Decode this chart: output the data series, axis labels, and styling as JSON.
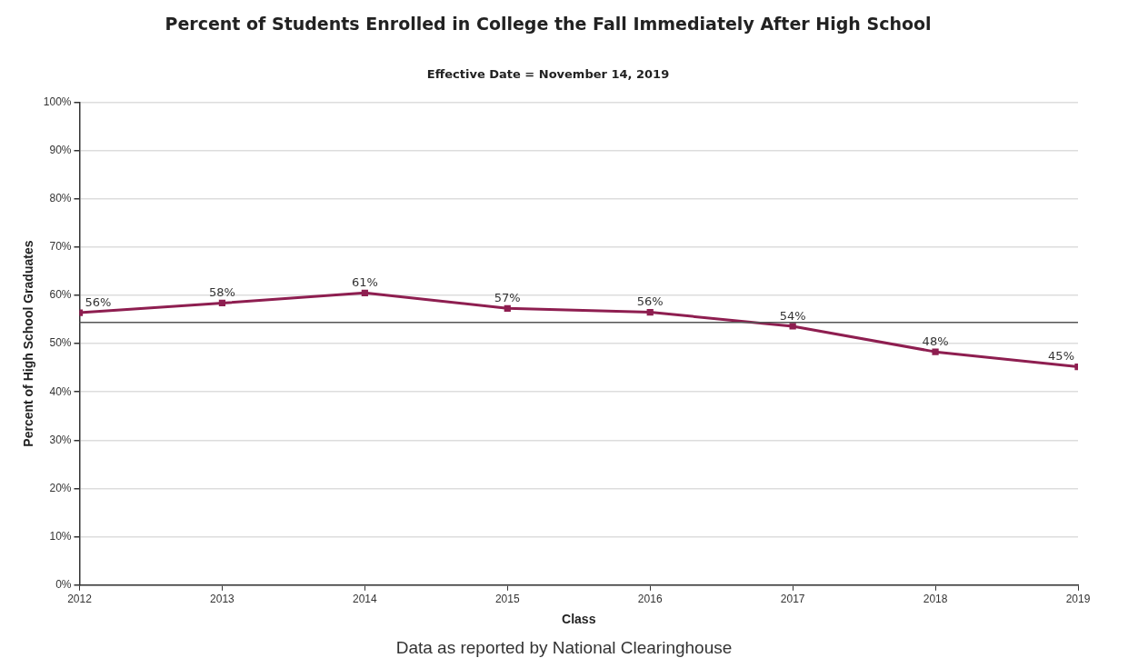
{
  "chart_data": {
    "type": "line",
    "title": "Percent of Students Enrolled in College the Fall Immediately After High School",
    "subtitle": "Effective Date = November 14, 2019",
    "xlabel": "Class",
    "ylabel": "Percent of High School Graduates",
    "x": [
      2012,
      2013,
      2014,
      2015,
      2016,
      2017,
      2018,
      2019
    ],
    "series": [
      {
        "color": "#8e1e50",
        "values": [
          56.4,
          58.4,
          60.5,
          57.3,
          56.5,
          53.6,
          48.3,
          45.2
        ],
        "value_labels": [
          "56%",
          "58%",
          "61%",
          "57%",
          "56%",
          "54%",
          "48%",
          "45%"
        ]
      }
    ],
    "xlim": [
      2012,
      2019
    ],
    "xticks": [
      2012,
      2013,
      2014,
      2015,
      2016,
      2017,
      2018,
      2019
    ],
    "ylim": [
      0,
      100
    ],
    "yticks": [
      {
        "value": 0,
        "label": "0%"
      },
      {
        "value": 10,
        "label": "10%"
      },
      {
        "value": 20,
        "label": "20%"
      },
      {
        "value": 30,
        "label": "30%"
      },
      {
        "value": 40,
        "label": "40%"
      },
      {
        "value": 50,
        "label": "50%"
      },
      {
        "value": 60,
        "label": "60%"
      },
      {
        "value": 70,
        "label": "70%"
      },
      {
        "value": 80,
        "label": "80%"
      },
      {
        "value": 90,
        "label": "90%"
      },
      {
        "value": 100,
        "label": "100%"
      }
    ],
    "ref_lines": [
      {
        "axis": "y",
        "value": 54.4,
        "color": "#555555"
      }
    ],
    "grid": "y",
    "legend": false,
    "marker": "square",
    "line_style": "solid",
    "annotations": [
      "Data as reported by National Clearinghouse"
    ]
  }
}
